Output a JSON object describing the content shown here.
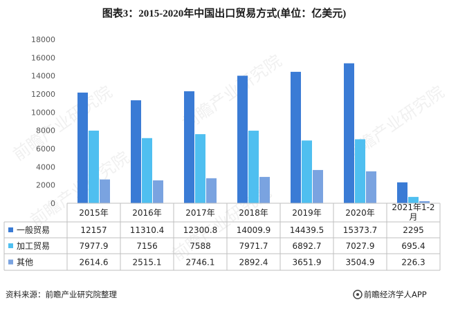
{
  "title": "图表3：2015-2020年中国出口贸易方式(单位：亿美元)",
  "source": "资料来源：前瞻产业研究院整理",
  "brand": "前瞻经济学人APP",
  "watermark": "前瞻产业研究院",
  "chart_data": {
    "type": "bar",
    "categories": [
      "2015年",
      "2016年",
      "2017年",
      "2018年",
      "2019年",
      "2020年",
      "2021年1-2月"
    ],
    "series": [
      {
        "name": "一般贸易",
        "color": "#3a7bd5",
        "values": [
          12157,
          11310.4,
          12300.8,
          14009.9,
          14439.5,
          15373.7,
          2295
        ],
        "labels": [
          "12157",
          "11310.4",
          "12300.8",
          "14009.9",
          "14439.5",
          "15373.7",
          "2295"
        ]
      },
      {
        "name": "加工贸易",
        "color": "#4fbff0",
        "values": [
          7977.9,
          7156,
          7588,
          7971.7,
          6892.7,
          7027.9,
          695.4
        ],
        "labels": [
          "7977.9",
          "7156",
          "7588",
          "7971.7",
          "6892.7",
          "7027.9",
          "695.4"
        ]
      },
      {
        "name": "其他",
        "color": "#7aa3e0",
        "values": [
          2614.6,
          2515.1,
          2746.1,
          2892.4,
          3651.9,
          3504.9,
          226.3
        ],
        "labels": [
          "2614.6",
          "2515.1",
          "2746.1",
          "2892.4",
          "3651.9",
          "3504.9",
          "226.3"
        ]
      }
    ],
    "ylim": [
      0,
      18000
    ],
    "yticks": [
      "0",
      "2000",
      "4000",
      "6000",
      "8000",
      "10000",
      "12000",
      "14000",
      "16000",
      "18000"
    ],
    "legend": "data-table-left",
    "grid": false
  }
}
